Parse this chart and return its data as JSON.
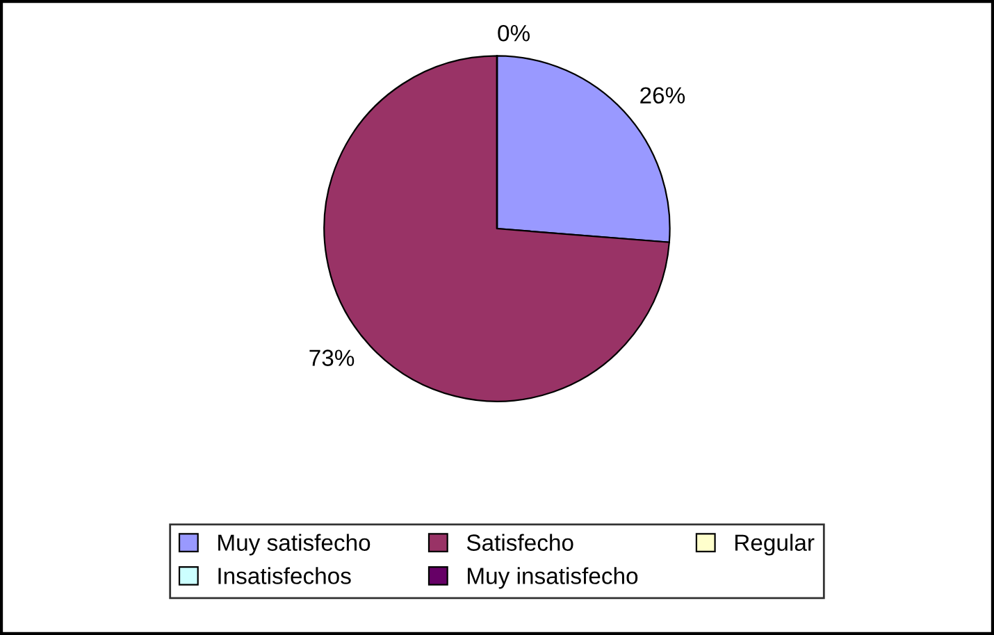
{
  "chart_data": {
    "type": "pie",
    "categories": [
      "Muy satisfecho",
      "Satisfecho",
      "Regular",
      "Insatisfechos",
      "Muy insatisfecho"
    ],
    "values": [
      26,
      73,
      0,
      0,
      0
    ],
    "value_labels": [
      "26%",
      "73%",
      "0%",
      null,
      null
    ],
    "colors": [
      "#9999ff",
      "#993366",
      "#ffffcc",
      "#ccffff",
      "#660066"
    ],
    "legend": "bottom"
  }
}
